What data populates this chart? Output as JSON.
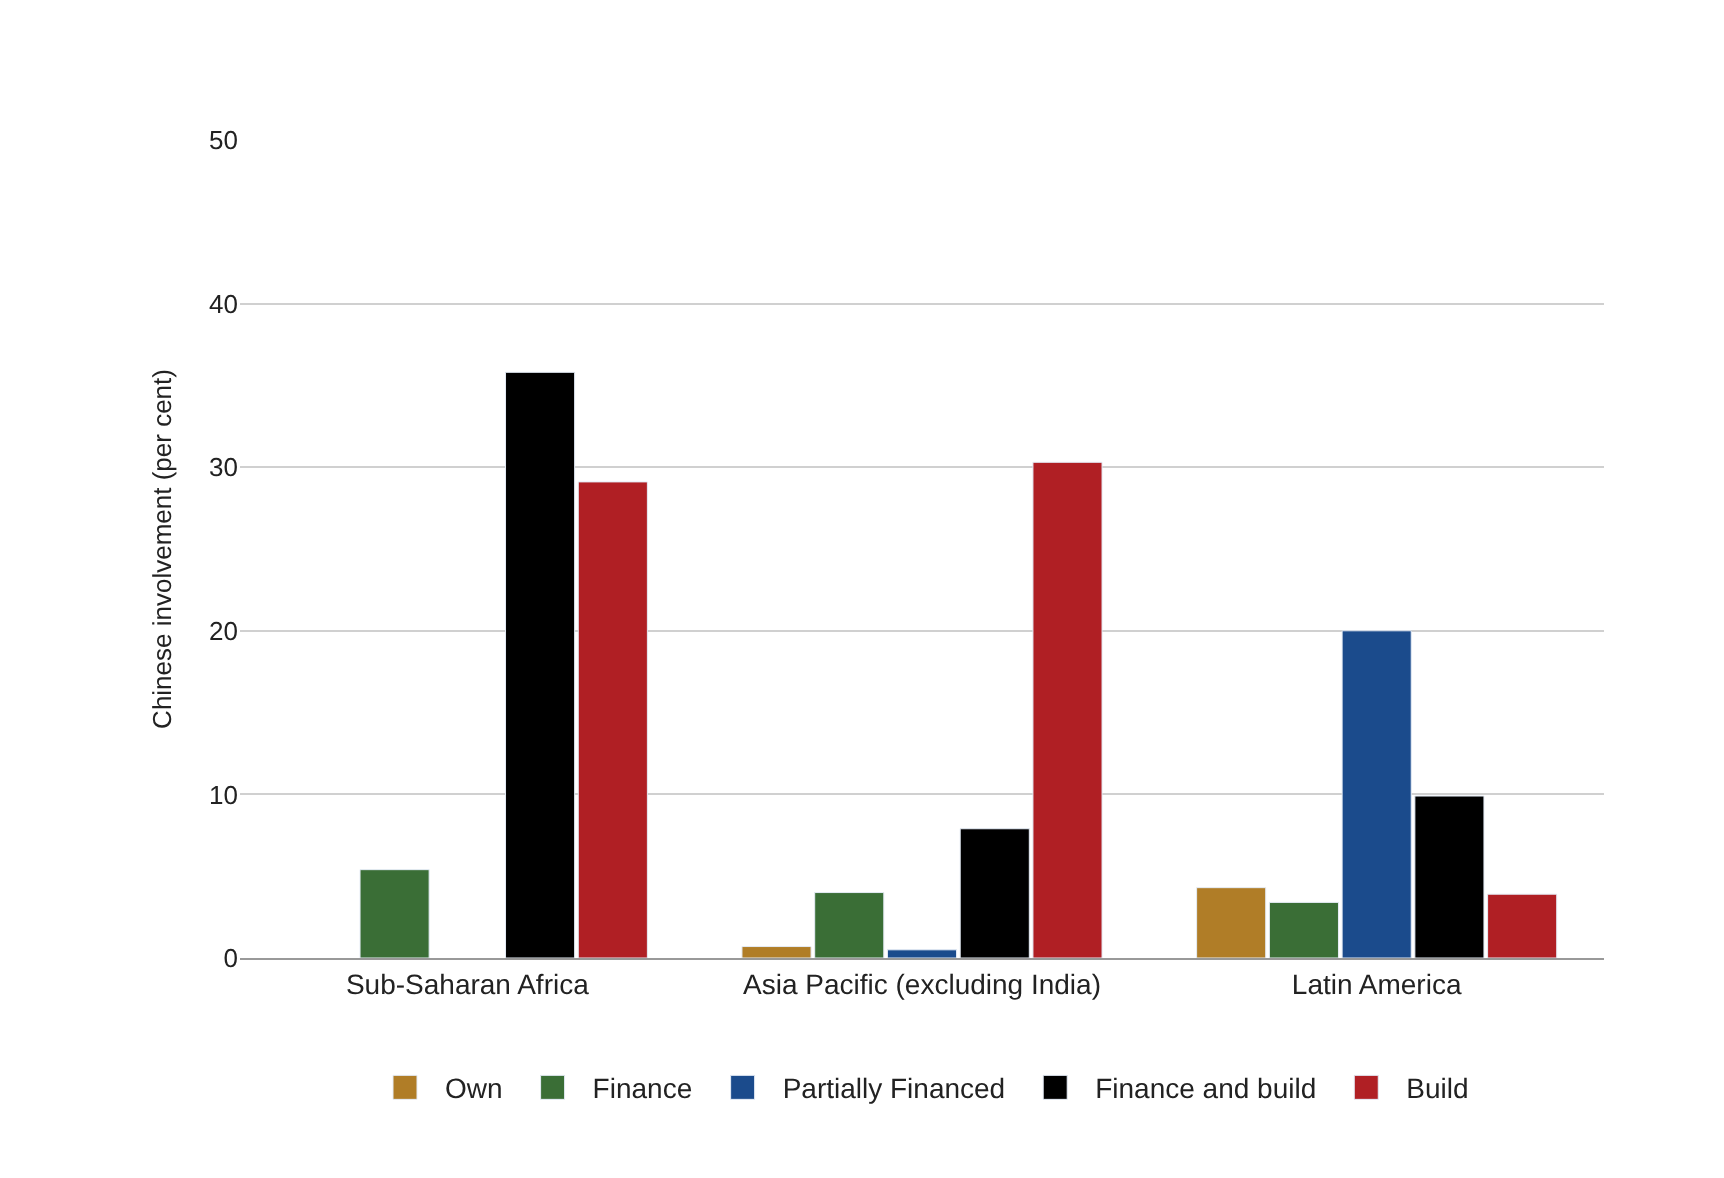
{
  "chart_data": {
    "type": "bar",
    "ylabel": "Chinese involvement (per cent)",
    "categories": [
      "Sub-Saharan Africa",
      "Asia Pacific (excluding India)",
      "Latin America"
    ],
    "series": [
      {
        "name": "Own",
        "color": "#b07d27",
        "values": [
          null,
          0.7,
          4.3
        ]
      },
      {
        "name": "Finance",
        "color": "#3a6e36",
        "values": [
          5.4,
          4.0,
          3.4
        ]
      },
      {
        "name": "Partially Financed",
        "color": "#1b4b8c",
        "values": [
          null,
          0.5,
          20.0
        ]
      },
      {
        "name": "Finance and build",
        "color": "#000000",
        "values": [
          35.8,
          7.9,
          9.9
        ]
      },
      {
        "name": "Build",
        "color": "#b01f24",
        "values": [
          29.1,
          30.3,
          3.9
        ]
      }
    ],
    "ylim": [
      0,
      50
    ],
    "yticks": [
      0,
      10,
      20,
      30,
      40,
      50
    ],
    "grid": "y",
    "legend": "bottom"
  }
}
